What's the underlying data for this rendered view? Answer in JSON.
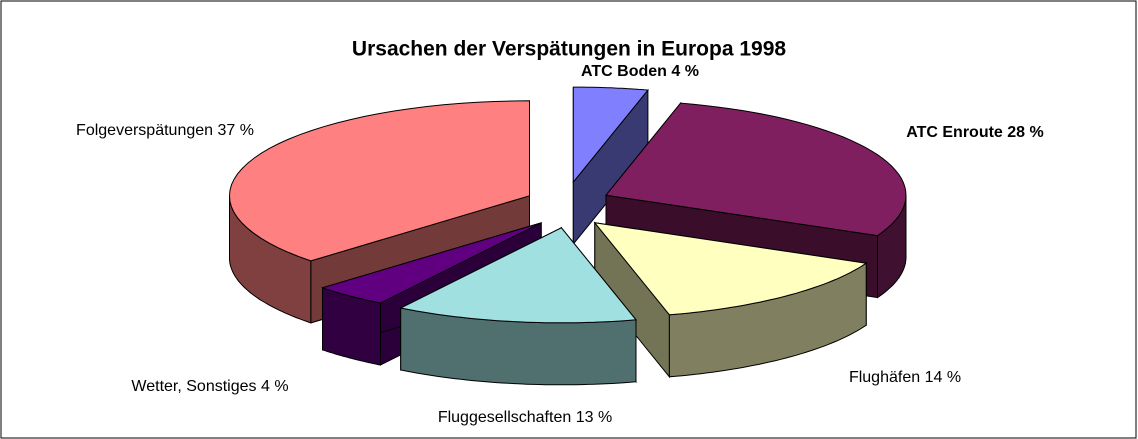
{
  "chart_data": {
    "type": "pie3d",
    "title": "Ursachen der Verspätungen in Europa 1998",
    "categories": [
      "ATC Boden",
      "ATC Enroute",
      "Flughäfen",
      "Fluggesellschaften",
      "Wetter, Sonstiges",
      "Folgeverspätungen"
    ],
    "values": [
      4,
      28,
      14,
      13,
      4,
      37
    ],
    "value_labels": [
      "4 %",
      "28 %",
      "14 %",
      "13 %",
      "4 %",
      "37 %"
    ],
    "colors": [
      "#8080ff",
      "#801f5f",
      "#ffffc0",
      "#a0e0e0",
      "#600080",
      "#ff8080"
    ]
  }
}
